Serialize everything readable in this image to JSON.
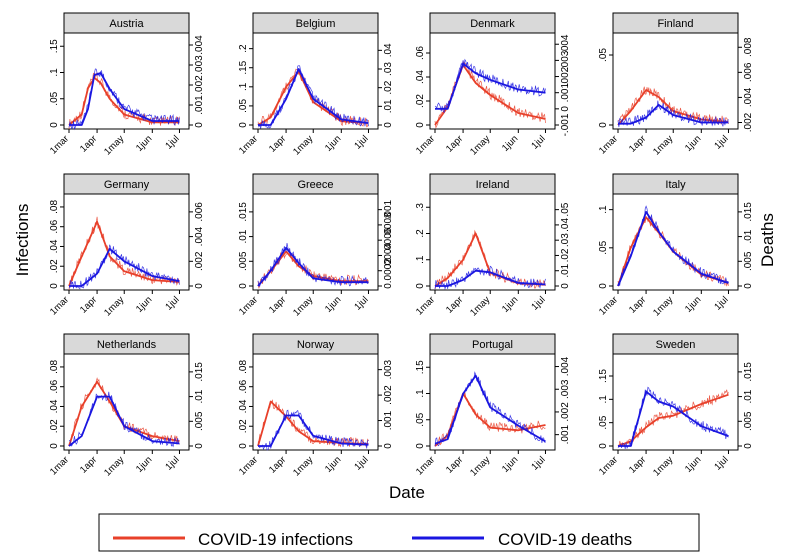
{
  "figure": {
    "left_ylabel": "Infections",
    "right_ylabel": "Deaths",
    "xlabel": "Date"
  },
  "legend": {
    "items": [
      {
        "label": "COVID-19 infections",
        "color": "#e8402a"
      },
      {
        "label": "COVID-19 deaths",
        "color": "#1a16e0"
      }
    ]
  },
  "x_ticks": [
    "1mar",
    "1apr",
    "1may",
    "1jun",
    "1jul"
  ],
  "chart_data": [
    {
      "type": "line",
      "title": "Austria",
      "x": [
        "1mar",
        "15mar",
        "22mar",
        "29mar",
        "5apr",
        "15apr",
        "1may",
        "1jun",
        "1jul"
      ],
      "left_ticks": [
        "0",
        ".05",
        ".1",
        ".15"
      ],
      "left_ylim": [
        0,
        0.16
      ],
      "right_ticks": [
        "0",
        ".001",
        ".002",
        ".003",
        ".004"
      ],
      "right_ylim": [
        0,
        0.0042
      ],
      "series": [
        {
          "name": "COVID-19 infections",
          "values": [
            0,
            0.02,
            0.07,
            0.09,
            0.08,
            0.05,
            0.02,
            0.005,
            0.005
          ]
        },
        {
          "name": "COVID-19 deaths",
          "values": [
            0,
            0,
            0.0008,
            0.0025,
            0.0026,
            0.0018,
            0.0008,
            0.0002,
            0.0002
          ]
        }
      ]
    },
    {
      "type": "line",
      "title": "Belgium",
      "x": [
        "1mar",
        "15mar",
        "1apr",
        "15apr",
        "1may",
        "1jun",
        "1jul"
      ],
      "left_ticks": [
        "0",
        ".05",
        ".1",
        ".15",
        ".2"
      ],
      "left_ylim": [
        0,
        0.22
      ],
      "right_ticks": [
        "0",
        ".01",
        ".02",
        ".03",
        ".04"
      ],
      "right_ylim": [
        0,
        0.045
      ],
      "series": [
        {
          "name": "COVID-19 infections",
          "values": [
            0,
            0.02,
            0.1,
            0.14,
            0.06,
            0.01,
            0.005
          ]
        },
        {
          "name": "COVID-19 deaths",
          "values": [
            0,
            0,
            0.014,
            0.03,
            0.014,
            0.003,
            0.001
          ]
        }
      ]
    },
    {
      "type": "line",
      "title": "Denmark",
      "x": [
        "1mar",
        "15mar",
        "1apr",
        "15apr",
        "1may",
        "1jun",
        "1jul"
      ],
      "left_ticks": [
        "0",
        ".02",
        ".04",
        ".06"
      ],
      "left_ylim": [
        0,
        0.07
      ],
      "right_ticks": [
        "-.001",
        "0",
        ".001",
        ".002",
        ".003",
        ".004"
      ],
      "right_ylim": [
        -0.001,
        0.0042
      ],
      "series": [
        {
          "name": "COVID-19 infections",
          "values": [
            0,
            0.015,
            0.05,
            0.035,
            0.025,
            0.01,
            0.005
          ]
        },
        {
          "name": "COVID-19 deaths",
          "values": [
            0,
            0,
            0.0028,
            0.0022,
            0.0018,
            0.0012,
            0.001
          ]
        }
      ]
    },
    {
      "type": "line",
      "title": "Finland",
      "x": [
        "1mar",
        "15mar",
        "1apr",
        "15apr",
        "1may",
        "1jun",
        "1jul"
      ],
      "left_ticks": [
        "0",
        ".05"
      ],
      "left_ylim": [
        0,
        0.06
      ],
      "right_ticks": [
        ".002",
        ".004",
        ".006",
        ".008"
      ],
      "right_ylim": [
        0.0018,
        0.0085
      ],
      "series": [
        {
          "name": "COVID-19 infections",
          "values": [
            0,
            0.01,
            0.025,
            0.02,
            0.01,
            0.004,
            0.002
          ]
        },
        {
          "name": "COVID-19 deaths",
          "values": [
            0.0019,
            0.0019,
            0.0024,
            0.0034,
            0.0026,
            0.002,
            0.002
          ]
        }
      ]
    },
    {
      "type": "line",
      "title": "Germany",
      "x": [
        "1mar",
        "15mar",
        "1apr",
        "15apr",
        "1may",
        "1jun",
        "1jul"
      ],
      "left_ticks": [
        "0",
        ".02",
        ".04",
        ".06",
        ".08"
      ],
      "left_ylim": [
        0,
        0.085
      ],
      "right_ticks": [
        "0",
        ".002",
        ".004",
        ".006"
      ],
      "right_ylim": [
        0,
        0.0068
      ],
      "series": [
        {
          "name": "COVID-19 infections",
          "values": [
            0,
            0.03,
            0.065,
            0.03,
            0.015,
            0.006,
            0.004
          ]
        },
        {
          "name": "COVID-19 deaths",
          "values": [
            0,
            0,
            0.001,
            0.003,
            0.002,
            0.0008,
            0.0004
          ]
        }
      ]
    },
    {
      "type": "line",
      "title": "Greece",
      "x": [
        "1mar",
        "15mar",
        "1apr",
        "15apr",
        "1may",
        "1jun",
        "1jul"
      ],
      "left_ticks": [
        "0",
        ".005",
        ".01",
        ".015"
      ],
      "left_ylim": [
        0,
        0.017
      ],
      "right_ticks": [
        "0",
        ".0002",
        ".0004",
        ".0006",
        ".0008",
        ".001"
      ],
      "right_ylim": [
        0,
        0.0011
      ],
      "series": [
        {
          "name": "COVID-19 infections",
          "values": [
            0,
            0.003,
            0.007,
            0.004,
            0.002,
            0.001,
            0.001
          ]
        },
        {
          "name": "COVID-19 deaths",
          "values": [
            0,
            0.0002,
            0.0005,
            0.0003,
            0.0001,
            5e-05,
            5e-05
          ]
        }
      ]
    },
    {
      "type": "line",
      "title": "Ireland",
      "x": [
        "1mar",
        "15mar",
        "1apr",
        "15apr",
        "1may",
        "1jun",
        "1jul"
      ],
      "left_ticks": [
        "0",
        ".1",
        ".2",
        ".3"
      ],
      "left_ylim": [
        0,
        0.32
      ],
      "right_ticks": [
        "0",
        ".01",
        ".02",
        ".03",
        ".04",
        ".05"
      ],
      "right_ylim": [
        0,
        0.055
      ],
      "series": [
        {
          "name": "COVID-19 infections",
          "values": [
            0,
            0.03,
            0.1,
            0.2,
            0.05,
            0.01,
            0.005
          ]
        },
        {
          "name": "COVID-19 deaths",
          "values": [
            0,
            0,
            0.004,
            0.01,
            0.009,
            0.002,
            0.001
          ]
        }
      ]
    },
    {
      "type": "line",
      "title": "Italy",
      "x": [
        "1mar",
        "15mar",
        "1apr",
        "15apr",
        "1may",
        "1jun",
        "1jul"
      ],
      "left_ticks": [
        "0",
        ".05",
        ".1"
      ],
      "left_ylim": [
        0,
        0.11
      ],
      "right_ticks": [
        "0",
        ".005",
        ".01",
        ".015"
      ],
      "right_ylim": [
        0,
        0.017
      ],
      "series": [
        {
          "name": "COVID-19 infections",
          "values": [
            0,
            0.05,
            0.09,
            0.07,
            0.045,
            0.015,
            0.004
          ]
        },
        {
          "name": "COVID-19 deaths",
          "values": [
            0,
            0.006,
            0.015,
            0.011,
            0.007,
            0.0025,
            0.0006
          ]
        }
      ]
    },
    {
      "type": "line",
      "title": "Netherlands",
      "x": [
        "1mar",
        "15mar",
        "1apr",
        "15apr",
        "1may",
        "1jun",
        "1jul"
      ],
      "left_ticks": [
        "0",
        ".02",
        ".04",
        ".06",
        ".08"
      ],
      "left_ylim": [
        0,
        0.085
      ],
      "right_ticks": [
        "0",
        ".005",
        ".01",
        ".015"
      ],
      "right_ylim": [
        0,
        0.017
      ],
      "series": [
        {
          "name": "COVID-19 infections",
          "values": [
            0,
            0.04,
            0.065,
            0.045,
            0.02,
            0.01,
            0.005
          ]
        },
        {
          "name": "COVID-19 deaths",
          "values": [
            0,
            0.002,
            0.01,
            0.01,
            0.004,
            0.001,
            0.0005
          ]
        }
      ]
    },
    {
      "type": "line",
      "title": "Norway",
      "x": [
        "1mar",
        "15mar",
        "1apr",
        "15apr",
        "1may",
        "1jun",
        "1jul"
      ],
      "left_ticks": [
        "0",
        ".02",
        ".04",
        ".06",
        ".08"
      ],
      "left_ylim": [
        0,
        0.085
      ],
      "right_ticks": [
        "0",
        ".001",
        ".002",
        ".003"
      ],
      "right_ylim": [
        0,
        0.0033
      ],
      "series": [
        {
          "name": "COVID-19 infections",
          "values": [
            0,
            0.045,
            0.03,
            0.015,
            0.005,
            0.003,
            0.002
          ]
        },
        {
          "name": "COVID-19 deaths",
          "values": [
            0,
            0,
            0.0012,
            0.0012,
            0.0004,
            0.0001,
            5e-05
          ]
        }
      ]
    },
    {
      "type": "line",
      "title": "Portugal",
      "x": [
        "1mar",
        "15mar",
        "1apr",
        "15apr",
        "1may",
        "1jun",
        "1jul"
      ],
      "left_ticks": [
        "0",
        ".05",
        ".1",
        ".15"
      ],
      "left_ylim": [
        0,
        0.16
      ],
      "right_ticks": [
        ".001",
        ".002",
        ".003",
        ".004"
      ],
      "right_ylim": [
        0.0005,
        0.0042
      ],
      "series": [
        {
          "name": "COVID-19 infections",
          "values": [
            0,
            0.02,
            0.1,
            0.06,
            0.035,
            0.03,
            0.04
          ]
        },
        {
          "name": "COVID-19 deaths",
          "values": [
            0.0006,
            0.0008,
            0.0028,
            0.0036,
            0.0022,
            0.0014,
            0.0007
          ]
        }
      ]
    },
    {
      "type": "line",
      "title": "Sweden",
      "x": [
        "1mar",
        "15mar",
        "1apr",
        "15apr",
        "1may",
        "1jun",
        "1jul"
      ],
      "left_ticks": [
        "0",
        ".05",
        ".1",
        ".15"
      ],
      "left_ylim": [
        0,
        0.18
      ],
      "right_ticks": [
        "0",
        ".005",
        ".01",
        ".015"
      ],
      "right_ylim": [
        0,
        0.017
      ],
      "series": [
        {
          "name": "COVID-19 infections",
          "values": [
            0,
            0.01,
            0.04,
            0.06,
            0.065,
            0.09,
            0.11
          ]
        },
        {
          "name": "COVID-19 deaths",
          "values": [
            0,
            0,
            0.011,
            0.009,
            0.008,
            0.004,
            0.002
          ]
        }
      ]
    }
  ]
}
